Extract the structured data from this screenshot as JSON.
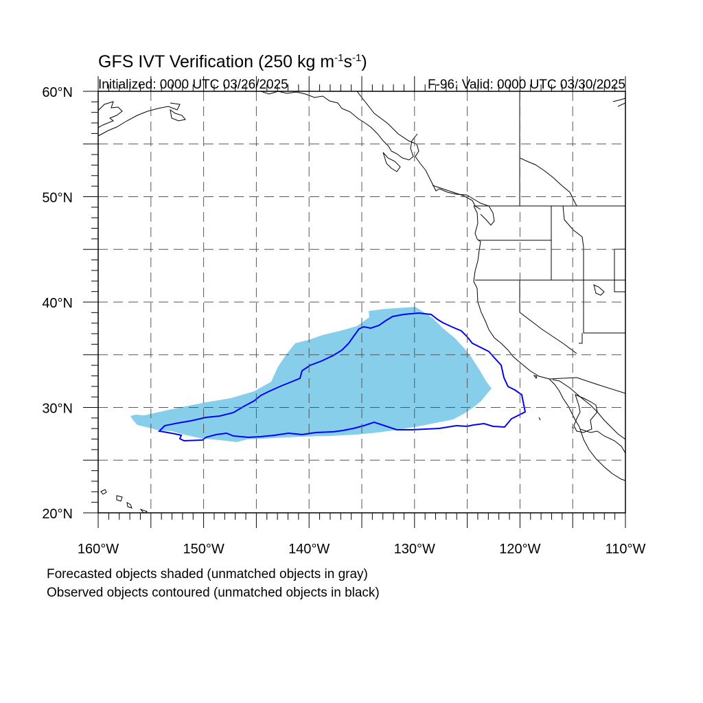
{
  "title": {
    "main": "GFS IVT Verification (250 kg m",
    "sup1": "-1",
    "mid": "s",
    "sup2": "-1",
    "end": ")"
  },
  "subtitle_left": "Initialized: 0000 UTC 03/26/2025",
  "subtitle_right": "F-96: Valid: 0000 UTC 03/30/2025",
  "map": {
    "lon_range": [
      -160,
      -110
    ],
    "lat_range": [
      20,
      60
    ],
    "grid": "on",
    "x_ticks": [
      "160°W",
      "150°W",
      "140°W",
      "130°W",
      "120°W",
      "110°W"
    ],
    "y_ticks": [
      "20°N",
      "30°N",
      "40°N",
      "50°N",
      "60°N"
    ],
    "colors": {
      "forecast_fill": "#87ceeb",
      "observed_contour": "#0000ff",
      "coastline": "#000000",
      "grid": "#555555"
    }
  },
  "footnotes": [
    "Forecasted objects shaded (unmatched objects in gray)",
    "Observed objects contoured (unmatched objects in black)"
  ]
}
